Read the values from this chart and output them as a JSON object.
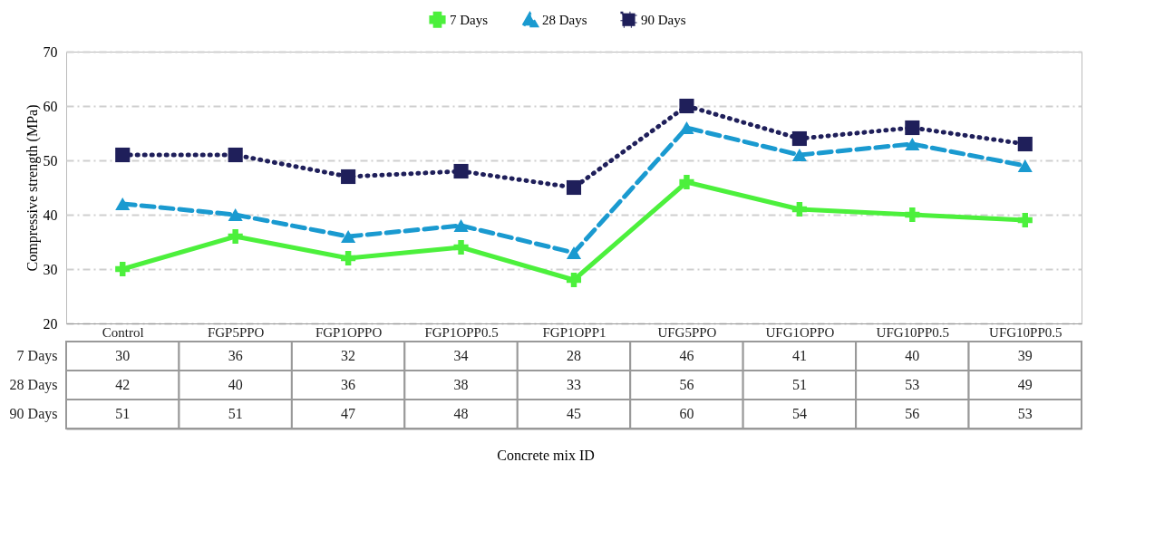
{
  "chart_data": {
    "type": "line",
    "annotations": [
      "Concrete mix ID"
    ],
    "ylabel": "Compressive strength (MPa)",
    "categories": [
      "Control",
      "FGP5PPO",
      "FGP1OPPO",
      "FGP1OPP0.5",
      "FGP1OPP1",
      "UFG5PPO",
      "UFG1OPPO",
      "UFG10PP0.5",
      "UFG10PP0.5"
    ],
    "series": [
      {
        "name": "7 Days",
        "color": "#4cf03c",
        "marker": "cross",
        "line_style": "solid",
        "values": [
          30,
          36,
          32,
          34,
          28,
          46,
          41,
          40,
          39
        ]
      },
      {
        "name": "28 Days",
        "color": "#1a9ad0",
        "marker": "triangle",
        "line_style": "dashed",
        "values": [
          42,
          40,
          36,
          38,
          33,
          56,
          51,
          53,
          49
        ]
      },
      {
        "name": "90 Days",
        "color": "#1f1f5a",
        "marker": "square",
        "line_style": "dotted",
        "values": [
          51,
          51,
          47,
          48,
          45,
          60,
          54,
          56,
          53
        ]
      }
    ],
    "ylim": [
      20,
      70
    ],
    "yticks": [
      20,
      30,
      40,
      50,
      60,
      70
    ],
    "grid": "y",
    "legend": "top",
    "data_labels": true
  }
}
